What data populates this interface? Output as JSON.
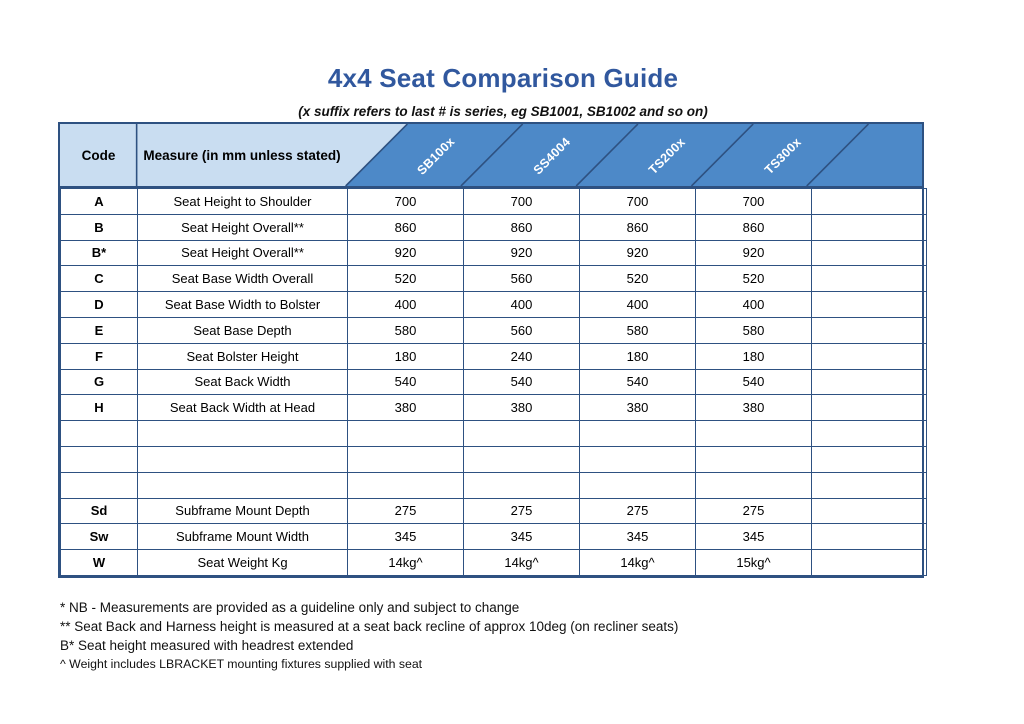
{
  "page": {
    "title": "4x4 Seat Comparison Guide",
    "subtitle": "(x suffix refers to last # is series, eg SB1001, SB1002 and so on)"
  },
  "colors": {
    "title_blue": "#31589e",
    "header_light_blue": "#c9ddf1",
    "header_dark_blue": "#4d89c8",
    "border_navy": "#2e5181",
    "header_label_white": "#ffffff"
  },
  "table": {
    "code_header": "Code",
    "measure_header": "Measure (in mm unless stated)",
    "columns": [
      "SB100x",
      "SS4004",
      "TS200x",
      "TS300x",
      ""
    ],
    "rows": [
      {
        "code": "A",
        "measure": "Seat Height to Shoulder",
        "values": [
          "700",
          "700",
          "700",
          "700",
          ""
        ]
      },
      {
        "code": "B",
        "measure": "Seat Height Overall**",
        "values": [
          "860",
          "860",
          "860",
          "860",
          ""
        ]
      },
      {
        "code": "B*",
        "measure": "Seat Height Overall**",
        "values": [
          "920",
          "920",
          "920",
          "920",
          ""
        ]
      },
      {
        "code": "C",
        "measure": "Seat Base Width Overall",
        "values": [
          "520",
          "560",
          "520",
          "520",
          ""
        ]
      },
      {
        "code": "D",
        "measure": "Seat Base Width to Bolster",
        "values": [
          "400",
          "400",
          "400",
          "400",
          ""
        ]
      },
      {
        "code": "E",
        "measure": "Seat Base Depth",
        "values": [
          "580",
          "560",
          "580",
          "580",
          ""
        ]
      },
      {
        "code": "F",
        "measure": "Seat Bolster Height",
        "values": [
          "180",
          "240",
          "180",
          "180",
          ""
        ]
      },
      {
        "code": "G",
        "measure": "Seat Back Width",
        "values": [
          "540",
          "540",
          "540",
          "540",
          ""
        ]
      },
      {
        "code": "H",
        "measure": "Seat Back Width at Head",
        "values": [
          "380",
          "380",
          "380",
          "380",
          ""
        ]
      },
      {
        "code": "",
        "measure": "",
        "values": [
          "",
          "",
          "",
          "",
          ""
        ]
      },
      {
        "code": "",
        "measure": "",
        "values": [
          "",
          "",
          "",
          "",
          ""
        ]
      },
      {
        "code": "",
        "measure": "",
        "values": [
          "",
          "",
          "",
          "",
          ""
        ]
      },
      {
        "code": "Sd",
        "measure": "Subframe Mount Depth",
        "values": [
          "275",
          "275",
          "275",
          "275",
          ""
        ]
      },
      {
        "code": "Sw",
        "measure": "Subframe Mount Width",
        "values": [
          "345",
          "345",
          "345",
          "345",
          ""
        ]
      },
      {
        "code": "W",
        "measure": "Seat Weight Kg",
        "values": [
          "14kg^",
          "14kg^",
          "14kg^",
          "15kg^",
          ""
        ]
      }
    ]
  },
  "footnotes": [
    "* NB - Measurements are provided as a guideline only and subject to change",
    "** Seat Back and Harness height is measured at a seat back recline of approx 10deg (on recliner seats)",
    "B* Seat height measured with headrest extended",
    "^ Weight includes LBRACKET mounting fixtures supplied with seat"
  ]
}
